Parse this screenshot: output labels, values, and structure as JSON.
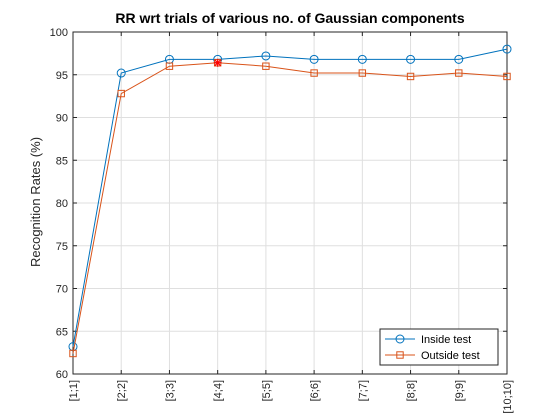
{
  "chart_data": {
    "type": "line",
    "title": "RR wrt trials of various no. of Gaussian components",
    "xlabel": "",
    "ylabel": "Recognition Rates (%)",
    "categories": [
      "[1;1]",
      "[2;2]",
      "[3;3]",
      "[4;4]",
      "[5;5]",
      "[6;6]",
      "[7;7]",
      "[8;8]",
      "[9;9]",
      "[10;10]"
    ],
    "ylim": [
      60,
      100
    ],
    "yticks": [
      60,
      65,
      70,
      75,
      80,
      85,
      90,
      95,
      100
    ],
    "grid": true,
    "legend_position": "bottom-right",
    "series": [
      {
        "name": "Inside test",
        "marker": "circle",
        "color": "#0072BD",
        "values": [
          63.2,
          95.2,
          96.8,
          96.8,
          97.2,
          96.8,
          96.8,
          96.8,
          96.8,
          98.0
        ]
      },
      {
        "name": "Outside test",
        "marker": "square",
        "color": "#D95319",
        "values": [
          62.4,
          92.8,
          96.0,
          96.4,
          96.0,
          95.2,
          95.2,
          94.8,
          95.2,
          94.8
        ]
      }
    ],
    "highlight": {
      "category": "[4;4]",
      "value": 96.4,
      "marker": "star",
      "color": "#FF0000"
    }
  }
}
